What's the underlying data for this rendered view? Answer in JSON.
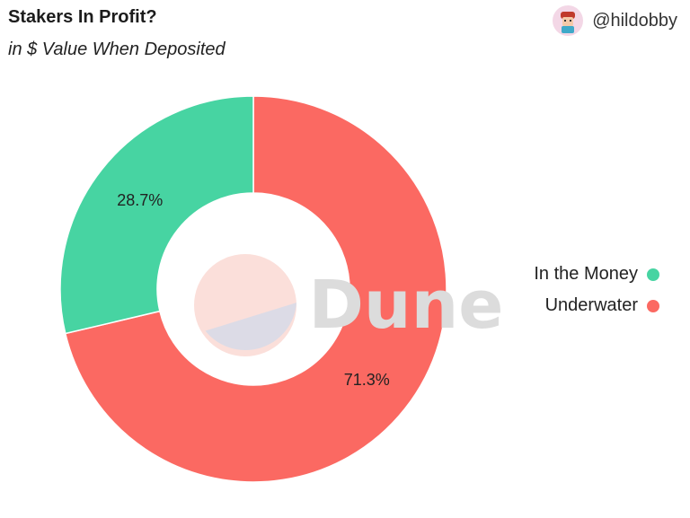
{
  "header": {
    "author_handle": "@hildobby"
  },
  "watermark": "Dune",
  "colors": {
    "in_the_money": "#47d4a2",
    "underwater": "#fb6962",
    "watermark_text": "#dcdcdc",
    "logo_peach": "#fbdfda",
    "logo_lavender": "#dcdbe6"
  },
  "chart_data": {
    "type": "pie",
    "title": "Stakers In Profit?",
    "subtitle": "in $ Value When Deposited",
    "donut": true,
    "legend_position": "right",
    "series": [
      {
        "name": "In the Money",
        "value": 28.7,
        "label": "28.7%"
      },
      {
        "name": "Underwater",
        "value": 71.3,
        "label": "71.3%"
      }
    ]
  }
}
